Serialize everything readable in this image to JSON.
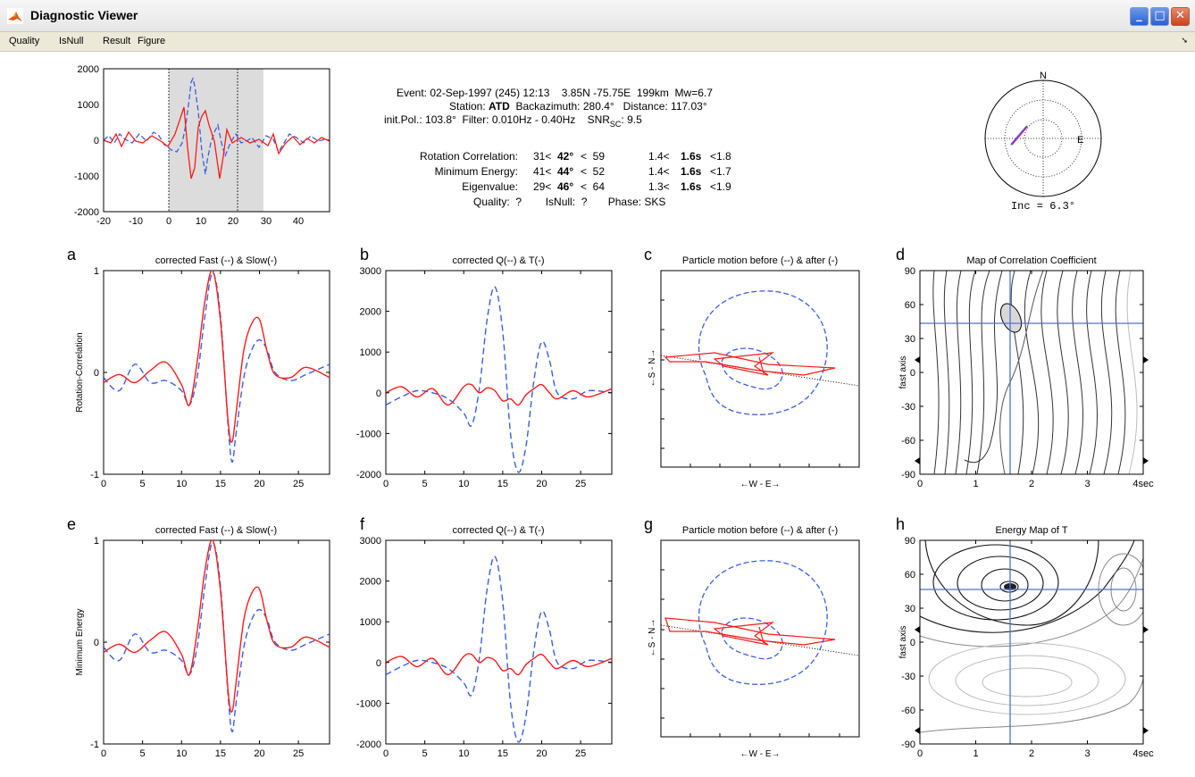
{
  "window": {
    "title": "Diagnostic Viewer",
    "buttons": {
      "minimize": "_",
      "maximize": "□",
      "close": "✕"
    }
  },
  "menu": [
    "Quality",
    "IsNull",
    "Result",
    "Figure"
  ],
  "header": {
    "event_line": "Event: 02-Sep-1997 (245) 12:13    3.85N -75.75E  199km  Mw=6.7",
    "station_prefix": "Station: ",
    "station": "ATD",
    "station_rest": "  Backazimuth: 280.4°   Distance: 117.03°",
    "initpol_line": "init.Pol.: 103.8°  Filter: 0.010Hz - 0.40Hz    SNR",
    "snr_sub": "SC",
    "snr_value": ": 9.5",
    "results": [
      {
        "method": "Rotation Correlation:",
        "phi_lo": "31<",
        "phi": "42°",
        "phi_hi": "<  59",
        "dt_lo": "1.4<",
        "dt": "1.6s",
        "dt_hi": "<1.8"
      },
      {
        "method": "Minimum Energy:",
        "phi_lo": "41<",
        "phi": "44°",
        "phi_hi": "<  52",
        "dt_lo": "1.4<",
        "dt": "1.6s",
        "dt_hi": "<1.7"
      },
      {
        "method": "Eigenvalue:",
        "phi_lo": "29<",
        "phi": "46°",
        "phi_hi": "<  64",
        "dt_lo": "1.3<",
        "dt": "1.6s",
        "dt_hi": "<1.9"
      }
    ],
    "quality_line": "Quality:  ?        IsNull:  ?       Phase: SKS"
  },
  "stereonet": {
    "north": "N",
    "east": "E",
    "inc_label": "Inc = 6.3°"
  },
  "panels": {
    "a": {
      "letter": "a",
      "title": "corrected Fast (--) & Slow(-)",
      "ylabel": "Rotation-Correlation"
    },
    "b": {
      "letter": "b",
      "title": "corrected Q(--) & T(-)"
    },
    "c": {
      "letter": "c",
      "title": "Particle motion before (--) & after (-)",
      "xlabel": "←W - E→",
      "ylabel": "←S - N→"
    },
    "d": {
      "letter": "d",
      "title": "Map of Correlation Coefficient",
      "ylabel": "fast axis"
    },
    "e": {
      "letter": "e",
      "title": "corrected Fast (--) & Slow(-)",
      "ylabel": "Minimum Energy"
    },
    "f": {
      "letter": "f",
      "title": "corrected Q(--) & T(-)"
    },
    "g": {
      "letter": "g",
      "title": "Particle motion before (--) & after (-)",
      "xlabel": "←W - E→",
      "ylabel": "←S - N→"
    },
    "h": {
      "letter": "h",
      "title": "Energy Map of T",
      "ylabel": "fast axis"
    }
  },
  "colors": {
    "fast_or_q": "#3a5fe0",
    "slow_or_t": "#ff1a1a",
    "window_shade": "#dcdcdc",
    "crosshair": "#5070d0"
  },
  "chart_data": [
    {
      "id": "overview",
      "type": "line",
      "xlim": [
        -20,
        50
      ],
      "ylim": [
        -2000,
        2000
      ],
      "xticks": [
        -20,
        -10,
        0,
        10,
        20,
        30,
        40
      ],
      "yticks": [
        -2000,
        -1000,
        0,
        1000,
        2000
      ],
      "selection_window": [
        0,
        29
      ],
      "markers": [
        0,
        21.5
      ],
      "series": []
    },
    {
      "id": "a",
      "type": "line",
      "xlim": [
        0,
        29
      ],
      "ylim": [
        -1,
        1
      ],
      "xticks": [
        0,
        5,
        10,
        15,
        20,
        25
      ],
      "yticks": [
        -1,
        0,
        1
      ],
      "x": [
        0,
        2,
        4,
        6,
        8,
        10,
        11,
        12,
        13,
        14,
        15,
        16,
        16.5,
        17,
        18,
        19,
        20,
        21,
        22,
        24,
        26,
        29
      ],
      "series": [
        {
          "name": "fast",
          "values": [
            -0.05,
            -0.18,
            0.08,
            -0.1,
            -0.08,
            -0.18,
            -0.32,
            -0.05,
            0.55,
            0.98,
            0.55,
            -0.55,
            -0.88,
            -0.6,
            -0.05,
            0.22,
            0.32,
            0.22,
            0.0,
            -0.08,
            -0.02,
            0.08
          ]
        },
        {
          "name": "slow",
          "values": [
            -0.1,
            -0.02,
            -0.1,
            0.02,
            0.1,
            -0.12,
            -0.32,
            0.1,
            0.7,
            1.0,
            0.5,
            -0.5,
            -0.68,
            -0.4,
            0.22,
            0.48,
            0.52,
            0.2,
            -0.02,
            -0.05,
            0.05,
            -0.05
          ]
        }
      ]
    },
    {
      "id": "b",
      "type": "line",
      "xlim": [
        0,
        29
      ],
      "ylim": [
        -2000,
        3000
      ],
      "xticks": [
        0,
        5,
        10,
        15,
        20,
        25
      ],
      "yticks": [
        -2000,
        -1000,
        0,
        1000,
        2000,
        3000
      ],
      "x": [
        0,
        2,
        4,
        6,
        8,
        10,
        11,
        12,
        13,
        14,
        15,
        16,
        17,
        18,
        19,
        20,
        21,
        22,
        24,
        26,
        29
      ],
      "series": [
        {
          "name": "Q",
          "values": [
            -300,
            -100,
            50,
            0,
            -150,
            -500,
            -800,
            100,
            1800,
            2600,
            1500,
            -1000,
            -1950,
            -1300,
            300,
            1250,
            800,
            0,
            -150,
            50,
            0
          ]
        },
        {
          "name": "T",
          "values": [
            0,
            150,
            -100,
            100,
            -300,
            150,
            200,
            0,
            120,
            50,
            -200,
            -150,
            -300,
            -50,
            100,
            200,
            0,
            -150,
            50,
            -100,
            100
          ]
        }
      ]
    },
    {
      "id": "e",
      "type": "line",
      "xlim": [
        0,
        29
      ],
      "ylim": [
        -1,
        1
      ],
      "xticks": [
        0,
        5,
        10,
        15,
        20,
        25
      ],
      "yticks": [
        -1,
        0,
        1
      ],
      "x": [
        0,
        2,
        4,
        6,
        8,
        10,
        11,
        12,
        13,
        14,
        15,
        16,
        16.5,
        17,
        18,
        19,
        20,
        21,
        22,
        24,
        26,
        29
      ],
      "series": [
        {
          "name": "fast",
          "values": [
            -0.05,
            -0.18,
            0.08,
            -0.1,
            -0.08,
            -0.18,
            -0.32,
            -0.05,
            0.55,
            0.98,
            0.55,
            -0.55,
            -0.88,
            -0.6,
            -0.05,
            0.22,
            0.32,
            0.22,
            0.0,
            -0.08,
            -0.02,
            0.08
          ]
        },
        {
          "name": "slow",
          "values": [
            -0.1,
            -0.02,
            -0.1,
            0.02,
            0.1,
            -0.12,
            -0.32,
            0.1,
            0.7,
            1.0,
            0.5,
            -0.5,
            -0.68,
            -0.4,
            0.22,
            0.48,
            0.52,
            0.2,
            -0.02,
            -0.05,
            0.05,
            -0.05
          ]
        }
      ]
    },
    {
      "id": "f",
      "type": "line",
      "xlim": [
        0,
        29
      ],
      "ylim": [
        -2000,
        3000
      ],
      "xticks": [
        0,
        5,
        10,
        15,
        20,
        25
      ],
      "yticks": [
        -2000,
        -1000,
        0,
        1000,
        2000,
        3000
      ],
      "x": [
        0,
        2,
        4,
        6,
        8,
        10,
        11,
        12,
        13,
        14,
        15,
        16,
        17,
        18,
        19,
        20,
        21,
        22,
        24,
        26,
        29
      ],
      "series": [
        {
          "name": "Q",
          "values": [
            -300,
            -100,
            50,
            0,
            -150,
            -500,
            -800,
            100,
            1800,
            2600,
            1500,
            -1000,
            -1950,
            -1300,
            300,
            1250,
            800,
            0,
            -150,
            50,
            0
          ]
        },
        {
          "name": "T",
          "values": [
            0,
            150,
            -100,
            100,
            -300,
            150,
            200,
            0,
            120,
            50,
            -200,
            -150,
            -300,
            -50,
            100,
            200,
            0,
            -150,
            50,
            -100,
            100
          ]
        }
      ]
    },
    {
      "id": "d",
      "type": "heatmap",
      "xlim": [
        0,
        4
      ],
      "ylim": [
        -90,
        90
      ],
      "xticks": [
        0,
        1,
        2,
        3,
        4
      ],
      "xticklabels": [
        "0",
        "1",
        "2",
        "3",
        "4sec"
      ],
      "yticks": [
        -90,
        -60,
        -30,
        0,
        30,
        60,
        90
      ],
      "best": {
        "dt": 1.6,
        "phi": 42
      }
    },
    {
      "id": "h",
      "type": "heatmap",
      "xlim": [
        0,
        4
      ],
      "ylim": [
        -90,
        90
      ],
      "xticks": [
        0,
        1,
        2,
        3,
        4
      ],
      "xticklabels": [
        "0",
        "1",
        "2",
        "3",
        "4sec"
      ],
      "yticks": [
        -90,
        -60,
        -30,
        0,
        30,
        60,
        90
      ],
      "best": {
        "dt": 1.6,
        "phi": 44
      }
    }
  ]
}
